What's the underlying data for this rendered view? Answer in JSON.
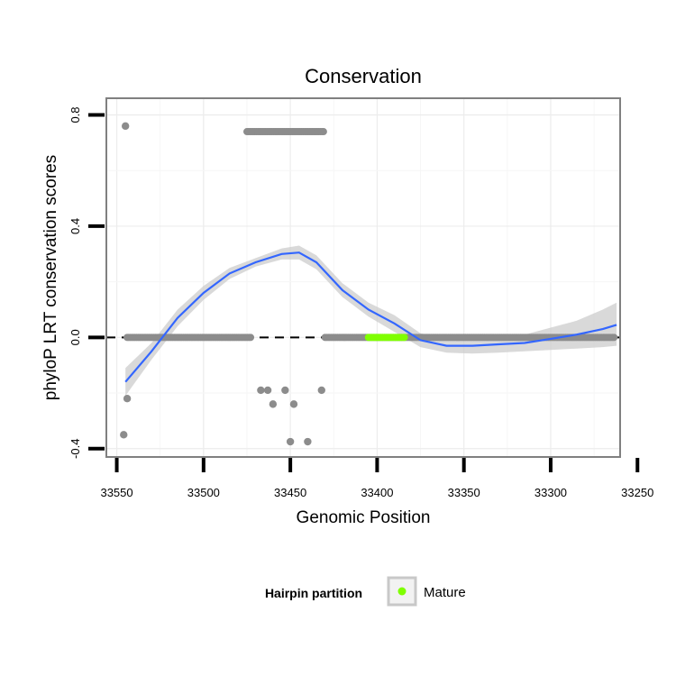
{
  "chart_data": {
    "type": "scatter",
    "title": "Conservation",
    "xlabel": "Genomic Position",
    "ylabel": "phyloP LRT conservation scores",
    "x_reversed": true,
    "xlim": [
      33260,
      33556
    ],
    "ylim": [
      -0.43,
      0.86
    ],
    "x_ticks": [
      33550,
      33500,
      33450,
      33400,
      33350,
      33300,
      33250
    ],
    "x_tick_labels": [
      "33550",
      "33500",
      "33450",
      "33400",
      "33350",
      "33300",
      "33250"
    ],
    "y_ticks": [
      -0.4,
      0.0,
      0.4,
      0.8
    ],
    "y_tick_labels": [
      "-0.4",
      "0.0",
      "0.4",
      "0.8"
    ],
    "x_minor_gridlines": [
      33525,
      33475,
      33425,
      33375,
      33325,
      33275
    ],
    "y_minor_gridlines": [
      -0.2,
      0.2,
      0.6
    ],
    "reference_line": {
      "y": 0.0,
      "style": "dashed"
    },
    "points_gray": [
      {
        "x": 33545,
        "y": 0.76
      },
      {
        "x": 33546,
        "y": -0.35
      },
      {
        "x": 33544,
        "y": -0.22
      },
      {
        "x": 33467,
        "y": -0.19
      },
      {
        "x": 33463,
        "y": -0.19
      },
      {
        "x": 33453,
        "y": -0.19
      },
      {
        "x": 33432,
        "y": -0.19
      },
      {
        "x": 33460,
        "y": -0.24
      },
      {
        "x": 33448,
        "y": -0.24
      },
      {
        "x": 33450,
        "y": -0.375
      },
      {
        "x": 33440,
        "y": -0.375
      }
    ],
    "row_segments_gray": [
      {
        "y": 0.0,
        "x_from": 33544,
        "x_to": 33472
      },
      {
        "y": 0.0,
        "x_from": 33430,
        "x_to": 33263
      },
      {
        "y": 0.74,
        "x_from": 33475,
        "x_to": 33430
      }
    ],
    "mature_segment": {
      "y": 0.0,
      "x_from": 33405,
      "x_to": 33384,
      "color": "#7fff00"
    },
    "smooth_line": {
      "x": [
        33545,
        33530,
        33515,
        33500,
        33485,
        33470,
        33455,
        33445,
        33435,
        33420,
        33405,
        33390,
        33375,
        33360,
        33345,
        33330,
        33315,
        33300,
        33285,
        33270,
        33262
      ],
      "y": [
        -0.16,
        -0.05,
        0.07,
        0.16,
        0.23,
        0.27,
        0.3,
        0.305,
        0.27,
        0.17,
        0.1,
        0.05,
        -0.01,
        -0.03,
        -0.03,
        -0.025,
        -0.02,
        -0.005,
        0.01,
        0.03,
        0.045
      ],
      "ci_low": [
        -0.21,
        -0.08,
        0.04,
        0.135,
        0.21,
        0.255,
        0.28,
        0.28,
        0.245,
        0.145,
        0.075,
        0.02,
        -0.035,
        -0.055,
        -0.058,
        -0.055,
        -0.05,
        -0.045,
        -0.04,
        -0.035,
        -0.03
      ],
      "ci_high": [
        -0.11,
        -0.02,
        0.1,
        0.185,
        0.25,
        0.285,
        0.32,
        0.33,
        0.295,
        0.195,
        0.125,
        0.08,
        0.015,
        -0.005,
        -0.002,
        0.005,
        0.01,
        0.035,
        0.06,
        0.1,
        0.125
      ],
      "color": "#3366ff",
      "band_color": "#cccccc"
    },
    "legend": {
      "position": "bottom",
      "title": "Hairpin partition",
      "entries": [
        {
          "label": "Mature",
          "color": "#7fff00"
        }
      ]
    }
  }
}
